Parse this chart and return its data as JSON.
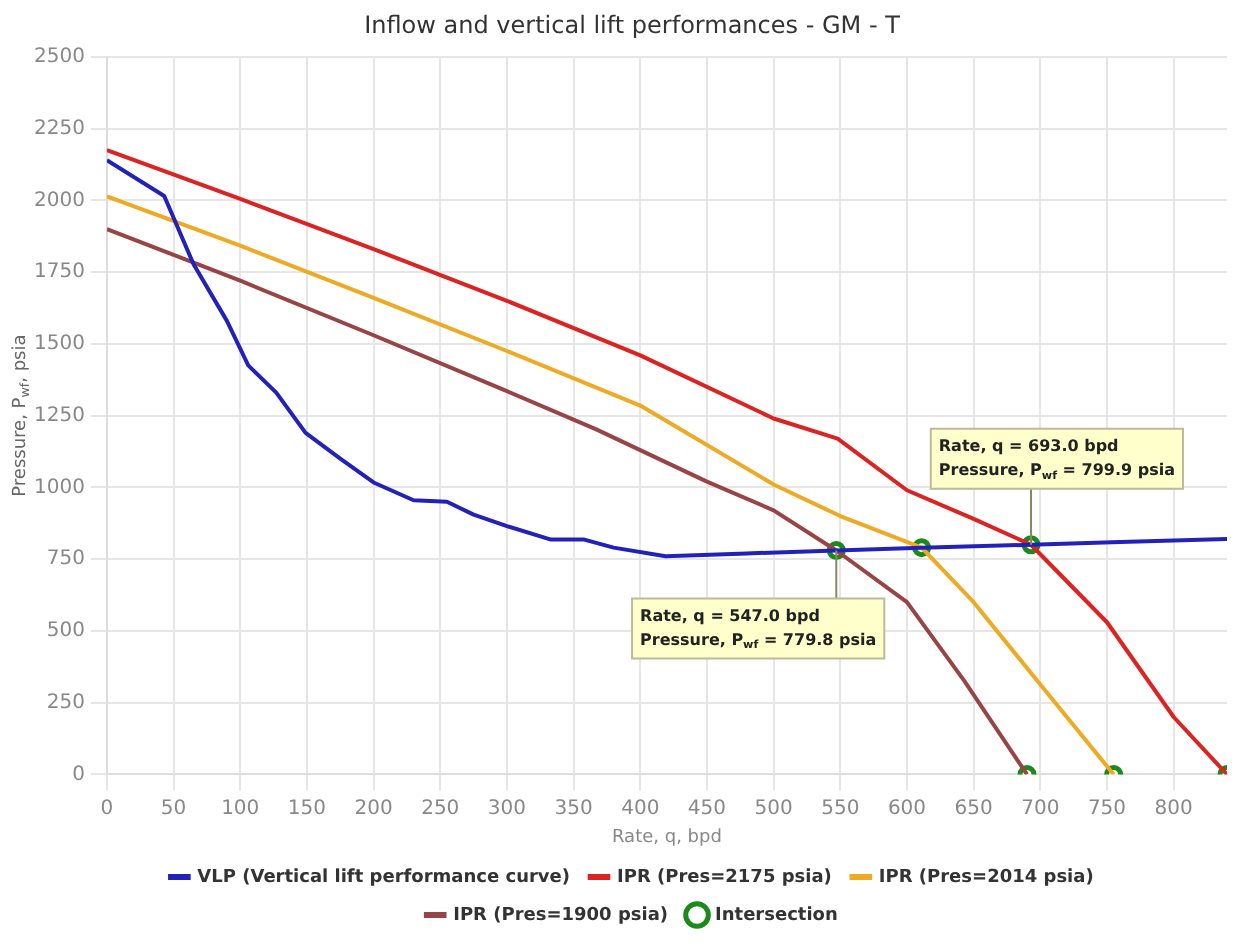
{
  "chart_data": {
    "type": "line",
    "title": "Inflow and vertical lift performances - GM - T",
    "xlabel": "Rate, q, bpd",
    "ylabel": "Pressure, P$_{wf}$, psia",
    "xlim": [
      0,
      840
    ],
    "xticks": [
      0,
      50,
      100,
      150,
      200,
      250,
      300,
      350,
      400,
      450,
      500,
      550,
      600,
      650,
      700,
      750,
      800
    ],
    "ylim": [
      0,
      2500
    ],
    "yticks": [
      0,
      250,
      500,
      750,
      1000,
      1250,
      1500,
      1750,
      2000,
      2250,
      2500
    ],
    "grid": true,
    "legend": "bottom",
    "marker": "none",
    "line_style": "solid",
    "series": [
      {
        "name": "VLP (Vertical lift performance curve)",
        "color": "#2222bb",
        "x": [
          0,
          43,
          65,
          90,
          106,
          127,
          149,
          175,
          200,
          230,
          255,
          275,
          300,
          333,
          358,
          380,
          419,
          480,
          547,
          611,
          693,
          760,
          840
        ],
        "values": [
          2140,
          2015,
          1777,
          1580,
          1425,
          1330,
          1190,
          1100,
          1017,
          955,
          950,
          905,
          865,
          818,
          818,
          790,
          760,
          770,
          780,
          790,
          800,
          810,
          820
        ]
      },
      {
        "name": "IPR (Pres=2175 psia)",
        "color": "#dd2222",
        "x": [
          0,
          100,
          200,
          300,
          400,
          500,
          548,
          600,
          650,
          693,
          750,
          800,
          840
        ],
        "values": [
          2175,
          2005,
          1830,
          1650,
          1460,
          1240,
          1170,
          990,
          890,
          800,
          530,
          200,
          0
        ]
      },
      {
        "name": "IPR (Pres=2014 psia)",
        "color": "#eeaa22",
        "x": [
          0,
          100,
          200,
          300,
          400,
          500,
          550,
          611,
          650,
          700,
          755
        ],
        "values": [
          2014,
          1842,
          1660,
          1475,
          1285,
          1010,
          900,
          790,
          600,
          313,
          0
        ]
      },
      {
        "name": "IPR (Pres=1900 psia)",
        "color": "#994444",
        "x": [
          0,
          100,
          200,
          300,
          367,
          450,
          500,
          547,
          600,
          643,
          690
        ],
        "values": [
          1900,
          1720,
          1530,
          1335,
          1202,
          1020,
          920,
          780,
          600,
          326,
          0
        ]
      },
      {
        "name": "Intersection",
        "type": "scatter",
        "marker": "circle",
        "color": "#1a8a1a",
        "x": [
          547,
          611,
          693,
          690,
          755,
          840
        ],
        "values": [
          779.8,
          790,
          799.9,
          0,
          0,
          0
        ]
      }
    ],
    "annotations": [
      {
        "text": "Rate, q = 547.0 bpd\nPressure, P$_{wf}$ = 779.8 psia",
        "x": 547,
        "y": 779.8
      },
      {
        "text": "Rate, q = 693.0 bpd\nPressure, P$_{wf}$ = 799.9 psia",
        "x": 693,
        "y": 799.9
      }
    ]
  }
}
